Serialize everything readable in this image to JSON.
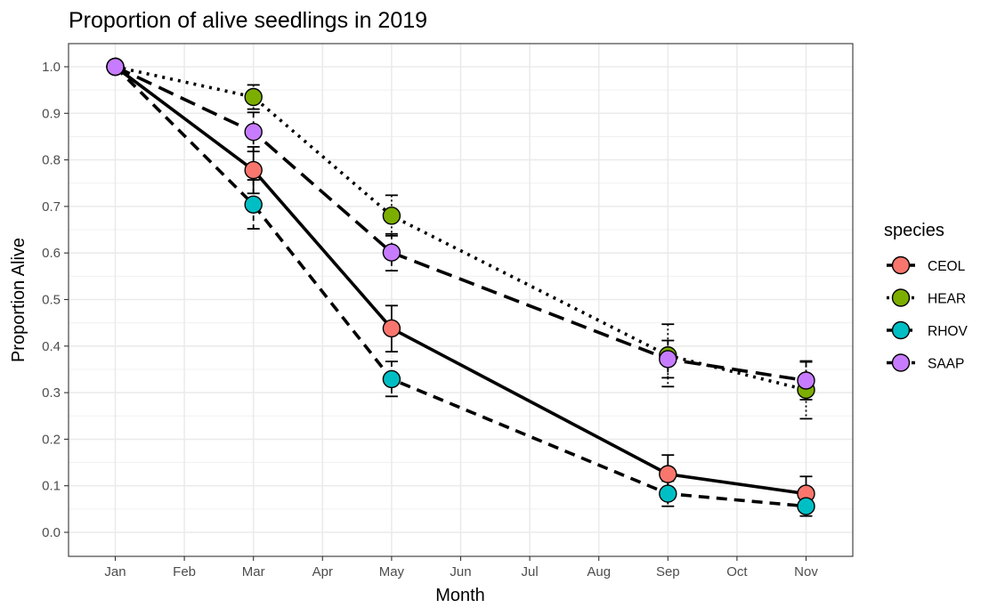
{
  "chart_data": {
    "type": "line",
    "title": "Proportion of alive seedlings in 2019",
    "xlabel": "Month",
    "ylabel": "Proportion Alive",
    "categories": [
      "Jan",
      "Feb",
      "Mar",
      "Apr",
      "May",
      "Jun",
      "Jul",
      "Aug",
      "Sep",
      "Oct",
      "Nov"
    ],
    "yticks": [
      "0.0",
      "0.1",
      "0.2",
      "0.3",
      "0.4",
      "0.5",
      "0.6",
      "0.7",
      "0.8",
      "0.9",
      "1.0"
    ],
    "ylim": [
      -0.05,
      1.05
    ],
    "grid": true,
    "legend": {
      "title": "species",
      "position": "right"
    },
    "series": [
      {
        "name": "CEOL",
        "color": "#f8766d",
        "linetype": "solid",
        "points": [
          {
            "x": "Jan",
            "y": 1.0,
            "lo": 1.0,
            "hi": 1.0
          },
          {
            "x": "Mar",
            "y": 0.778,
            "lo": 0.728,
            "hi": 0.828
          },
          {
            "x": "May",
            "y": 0.438,
            "lo": 0.388,
            "hi": 0.487
          },
          {
            "x": "Sep",
            "y": 0.125,
            "lo": 0.084,
            "hi": 0.166
          },
          {
            "x": "Nov",
            "y": 0.083,
            "lo": 0.046,
            "hi": 0.12
          }
        ]
      },
      {
        "name": "HEAR",
        "color": "#7cae00",
        "linetype": "dotted",
        "points": [
          {
            "x": "Jan",
            "y": 1.0,
            "lo": 1.0,
            "hi": 1.0
          },
          {
            "x": "Mar",
            "y": 0.935,
            "lo": 0.909,
            "hi": 0.961
          },
          {
            "x": "May",
            "y": 0.68,
            "lo": 0.637,
            "hi": 0.724
          },
          {
            "x": "Sep",
            "y": 0.38,
            "lo": 0.313,
            "hi": 0.447
          },
          {
            "x": "Nov",
            "y": 0.306,
            "lo": 0.244,
            "hi": 0.368
          }
        ]
      },
      {
        "name": "RHOV",
        "color": "#00bfc4",
        "linetype": "dashed",
        "points": [
          {
            "x": "Jan",
            "y": 1.0,
            "lo": 1.0,
            "hi": 1.0
          },
          {
            "x": "Mar",
            "y": 0.704,
            "lo": 0.652,
            "hi": 0.757
          },
          {
            "x": "May",
            "y": 0.329,
            "lo": 0.292,
            "hi": 0.367
          },
          {
            "x": "Sep",
            "y": 0.083,
            "lo": 0.056,
            "hi": 0.11
          },
          {
            "x": "Nov",
            "y": 0.056,
            "lo": 0.035,
            "hi": 0.077
          }
        ]
      },
      {
        "name": "SAAP",
        "color": "#c77cff",
        "linetype": "longdash",
        "points": [
          {
            "x": "Jan",
            "y": 1.0,
            "lo": 1.0,
            "hi": 1.0
          },
          {
            "x": "Mar",
            "y": 0.86,
            "lo": 0.818,
            "hi": 0.902
          },
          {
            "x": "May",
            "y": 0.601,
            "lo": 0.562,
            "hi": 0.641
          },
          {
            "x": "Sep",
            "y": 0.372,
            "lo": 0.332,
            "hi": 0.412
          },
          {
            "x": "Nov",
            "y": 0.326,
            "lo": 0.285,
            "hi": 0.366
          }
        ]
      }
    ]
  }
}
